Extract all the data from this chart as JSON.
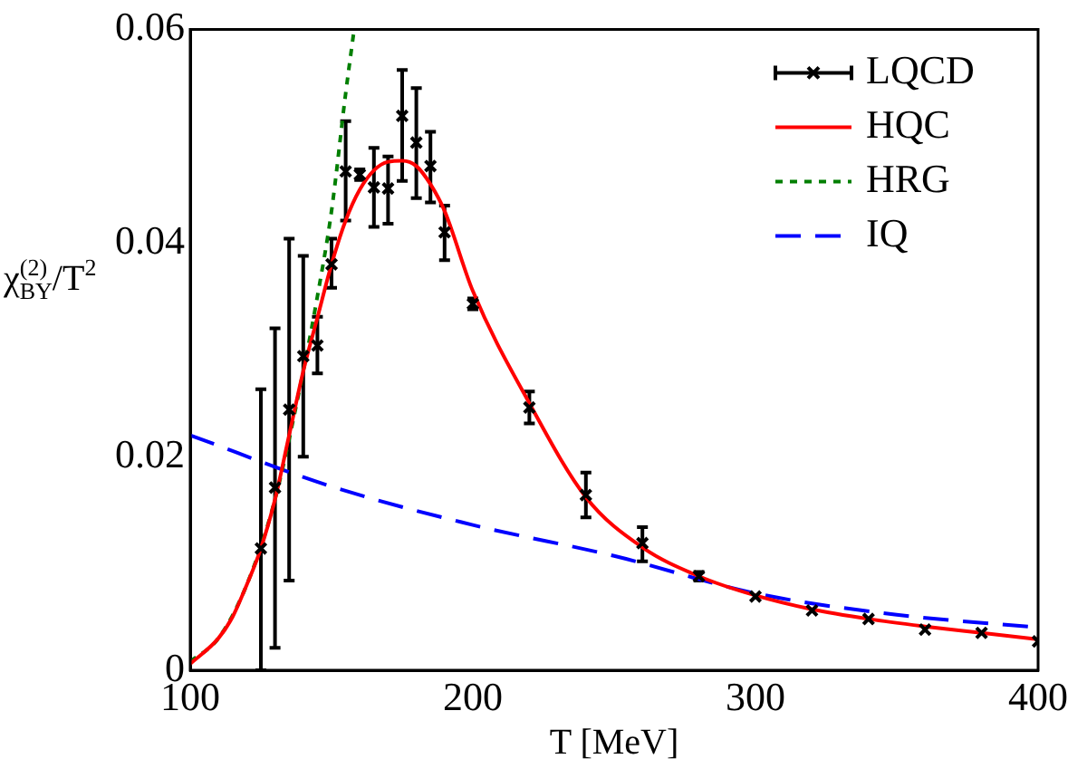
{
  "chart_data": {
    "type": "line",
    "xlabel": "T [MeV]",
    "ylabel": "χ$_{BY}$$^{(2)}$/T$^{2}$",
    "xlim": [
      100,
      400
    ],
    "ylim": [
      0,
      0.06
    ],
    "xticks": [
      100,
      200,
      300,
      400
    ],
    "yticks": [
      0,
      0.02,
      0.04,
      0.06
    ],
    "grid": false,
    "legend": "top right",
    "series": [
      {
        "name": "LQCD",
        "type": "scatter",
        "color": "#000000",
        "marker": "cross",
        "x": [
          125,
          130,
          135,
          140,
          145,
          150,
          155,
          160,
          165,
          170,
          175,
          180,
          185,
          190,
          200,
          220,
          240,
          260,
          280,
          300,
          320,
          340,
          360,
          380,
          400
        ],
        "values": [
          0.0114,
          0.0171,
          0.0244,
          0.0294,
          0.0304,
          0.038,
          0.0467,
          0.0464,
          0.0452,
          0.0451,
          0.0519,
          0.0494,
          0.0472,
          0.041,
          0.0343,
          0.0246,
          0.0164,
          0.0119,
          0.0088,
          0.0069,
          0.0056,
          0.0048,
          0.0038,
          0.0035,
          0.0027
        ],
        "errors": [
          [
            0,
            0.0263
          ],
          [
            0.0021,
            0.032
          ],
          [
            0.0084,
            0.0404
          ],
          [
            0.02,
            0.0388
          ],
          [
            0.0278,
            0.0331
          ],
          [
            0.0358,
            0.0404
          ],
          [
            0.0421,
            0.0514
          ],
          [
            0.0459,
            0.0469
          ],
          [
            0.0415,
            0.0489
          ],
          [
            0.0418,
            0.0481
          ],
          [
            0.0458,
            0.0562
          ],
          [
            0.0442,
            0.0545
          ],
          [
            0.0438,
            0.0504
          ],
          [
            0.0384,
            0.0435
          ],
          [
            0.0338,
            0.0348
          ],
          [
            0.0231,
            0.0261
          ],
          [
            0.0143,
            0.0185
          ],
          [
            0.0102,
            0.0134
          ],
          [
            0.0084,
            0.0092
          ],
          null,
          null,
          null,
          null,
          null,
          null
        ]
      },
      {
        "name": "HQC",
        "type": "line",
        "color": "#ff0000",
        "line_style": "solid",
        "marker": "none",
        "x": [
          100,
          110,
          115,
          120,
          125,
          130,
          135,
          140,
          145,
          150,
          155,
          160,
          165,
          170,
          175,
          180,
          185,
          190,
          200,
          220,
          240,
          260,
          280,
          300,
          320,
          340,
          360,
          380,
          400
        ],
        "values": [
          0.0006,
          0.003,
          0.005,
          0.008,
          0.0114,
          0.016,
          0.022,
          0.028,
          0.033,
          0.038,
          0.0421,
          0.045,
          0.0468,
          0.0476,
          0.0477,
          0.0472,
          0.0455,
          0.043,
          0.0355,
          0.025,
          0.0162,
          0.0115,
          0.0088,
          0.007,
          0.0057,
          0.0048,
          0.0041,
          0.0035,
          0.0029
        ]
      },
      {
        "name": "HRG",
        "type": "line",
        "color": "#007f00",
        "line_style": "dotted",
        "marker": "none",
        "x": [
          100,
          110,
          120,
          130,
          140,
          145,
          150,
          155,
          158
        ],
        "values": [
          0.0008,
          0.003,
          0.008,
          0.016,
          0.028,
          0.035,
          0.043,
          0.054,
          0.06
        ]
      },
      {
        "name": "IQ",
        "type": "line",
        "color": "#0000ff",
        "line_style": "dashed",
        "marker": "none",
        "x": [
          100,
          150,
          200,
          250,
          300,
          350,
          400
        ],
        "values": [
          0.022,
          0.0172,
          0.0136,
          0.0107,
          0.0072,
          0.0052,
          0.004
        ]
      }
    ]
  }
}
